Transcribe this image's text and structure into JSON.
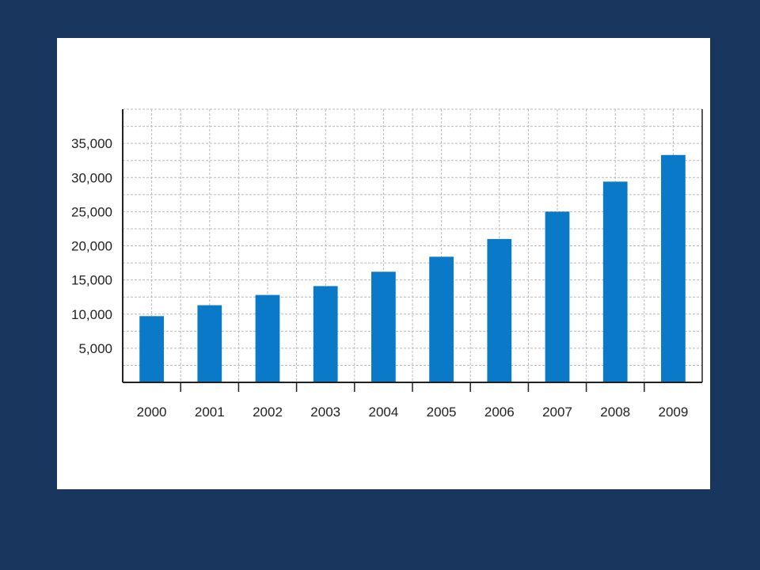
{
  "chart_data": {
    "type": "bar",
    "categories": [
      "2000",
      "2001",
      "2002",
      "2003",
      "2004",
      "2005",
      "2006",
      "2007",
      "2008",
      "2009"
    ],
    "values": [
      9700,
      11300,
      12800,
      14100,
      16200,
      18400,
      21000,
      25000,
      29400,
      33300
    ],
    "y_ticks": [
      "5,000",
      "10,000",
      "15,000",
      "20,000",
      "25,000",
      "30,000",
      "35,000"
    ],
    "ylim": [
      0,
      40000
    ],
    "grid": true,
    "bar_color": "#0a7ac8",
    "title": "",
    "xlabel": "",
    "ylabel": ""
  },
  "colors": {
    "background": "#19375e",
    "card": "#ffffff",
    "grid": "#b9b9b9",
    "axis": "#222222"
  }
}
